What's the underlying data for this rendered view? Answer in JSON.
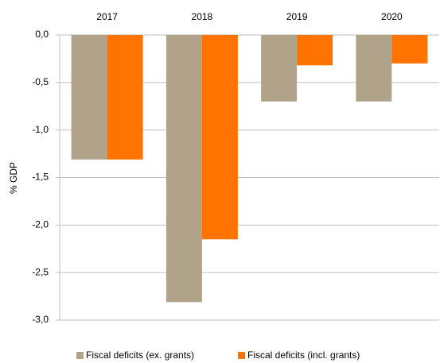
{
  "chart_data": {
    "type": "bar",
    "categories": [
      "2017",
      "2018",
      "2019",
      "2020"
    ],
    "series": [
      {
        "name": "Fiscal deficits (ex. grants)",
        "color": "#b0a38a",
        "values": [
          -1.31,
          -2.81,
          -0.7,
          -0.7
        ]
      },
      {
        "name": "Fiscal deficits (incl. grants)",
        "color": "#ff7300",
        "values": [
          -1.31,
          -2.15,
          -0.32,
          -0.3
        ]
      }
    ],
    "y_label": "% GDP",
    "ylim": [
      -3,
      0
    ],
    "yticks": [
      {
        "value": 0,
        "label": "0,0"
      },
      {
        "value": -0.5,
        "label": "-0,5"
      },
      {
        "value": -1,
        "label": "-1,0"
      },
      {
        "value": -1.5,
        "label": "-1,5"
      },
      {
        "value": -2,
        "label": "-2,0"
      },
      {
        "value": -2.5,
        "label": "-2,5"
      },
      {
        "value": -3,
        "label": "-3,0"
      }
    ],
    "grid": true,
    "legend": "bottom"
  }
}
